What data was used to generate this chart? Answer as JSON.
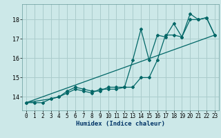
{
  "xlabel": "Humidex (Indice chaleur)",
  "bg_color": "#cce8e8",
  "grid_color": "#aacccc",
  "line_color": "#006666",
  "xlim": [
    -0.5,
    23.5
  ],
  "ylim": [
    13.3,
    18.8
  ],
  "yticks": [
    14,
    15,
    16,
    17,
    18
  ],
  "xticks": [
    0,
    1,
    2,
    3,
    4,
    5,
    6,
    7,
    8,
    9,
    10,
    11,
    12,
    13,
    14,
    15,
    16,
    17,
    18,
    19,
    20,
    21,
    22,
    23
  ],
  "series1_x": [
    0,
    1,
    2,
    3,
    4,
    5,
    6,
    7,
    8,
    9,
    10,
    11,
    12,
    13,
    14,
    15,
    16,
    17,
    18,
    19,
    20,
    21,
    22,
    23
  ],
  "series1_y": [
    13.7,
    13.7,
    13.7,
    13.9,
    14.0,
    14.3,
    14.5,
    14.4,
    14.3,
    14.3,
    14.5,
    14.5,
    14.5,
    14.5,
    15.0,
    15.0,
    15.9,
    17.2,
    17.2,
    17.1,
    18.0,
    18.0,
    18.1,
    17.2
  ],
  "series2_x": [
    0,
    3,
    4,
    5,
    6,
    7,
    8,
    9,
    10,
    11,
    12,
    13,
    14,
    15,
    16,
    17,
    18,
    19,
    20,
    21,
    22,
    23
  ],
  "series2_y": [
    13.7,
    13.9,
    14.0,
    14.2,
    14.4,
    14.3,
    14.2,
    14.4,
    14.4,
    14.4,
    14.5,
    15.9,
    17.5,
    15.9,
    17.2,
    17.1,
    17.8,
    17.1,
    18.3,
    18.0,
    18.1,
    17.2
  ],
  "series3_x": [
    0,
    23
  ],
  "series3_y": [
    13.7,
    17.2
  ]
}
